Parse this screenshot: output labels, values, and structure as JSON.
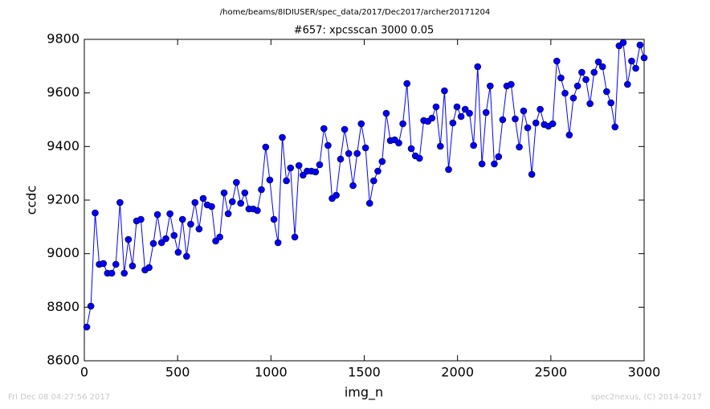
{
  "chart_data": {
    "type": "line",
    "suptitle": "/home/beams/8IDIUSER/spec_data/2017/Dec2017/archer20171204",
    "title": "#657: xpcsscan 3000 0.05",
    "xlabel": "img_n",
    "ylabel": "ccdc",
    "footer_left": "Fri Dec 08 04:27:56 2017",
    "footer_right": "spec2nexus, (C) 2014-2017",
    "xlim": [
      0,
      3000
    ],
    "ylim": [
      8600,
      9800
    ],
    "xticks": [
      0,
      500,
      1000,
      1500,
      2000,
      2500,
      3000
    ],
    "yticks": [
      8600,
      8800,
      9000,
      9200,
      9400,
      9600,
      9800
    ],
    "x": [
      13,
      35,
      58,
      80,
      102,
      124,
      147,
      169,
      191,
      214,
      236,
      258,
      280,
      303,
      325,
      347,
      370,
      392,
      414,
      437,
      459,
      481,
      503,
      526,
      548,
      570,
      593,
      615,
      637,
      659,
      682,
      704,
      726,
      749,
      771,
      793,
      815,
      838,
      860,
      882,
      905,
      927,
      949,
      972,
      994,
      1016,
      1038,
      1061,
      1083,
      1105,
      1128,
      1150,
      1172,
      1194,
      1217,
      1239,
      1261,
      1284,
      1306,
      1328,
      1350,
      1373,
      1395,
      1417,
      1440,
      1462,
      1484,
      1507,
      1529,
      1551,
      1573,
      1596,
      1618,
      1640,
      1663,
      1685,
      1707,
      1729,
      1752,
      1774,
      1796,
      1819,
      1841,
      1863,
      1885,
      1908,
      1930,
      1952,
      1975,
      1997,
      2019,
      2041,
      2064,
      2086,
      2108,
      2131,
      2153,
      2175,
      2197,
      2220,
      2242,
      2264,
      2287,
      2309,
      2331,
      2354,
      2376,
      2398,
      2420,
      2443,
      2465,
      2487,
      2510,
      2532,
      2554,
      2576,
      2599,
      2621,
      2643,
      2666,
      2688,
      2710,
      2732,
      2755,
      2777,
      2799,
      2822,
      2844,
      2866,
      2888,
      2911,
      2933,
      2955,
      2978,
      3000
    ],
    "series": [
      {
        "color": "#0000ff",
        "values": [
          8726,
          8804,
          9152,
          8960,
          8963,
          8927,
          8927,
          8960,
          9191,
          8927,
          9053,
          8954,
          9122,
          9128,
          8939,
          8948,
          9038,
          9146,
          9041,
          9056,
          9149,
          9068,
          9005,
          9128,
          8990,
          9110,
          9191,
          9092,
          9206,
          9182,
          9176,
          9047,
          9062,
          9227,
          9149,
          9194,
          9266,
          9188,
          9227,
          9167,
          9167,
          9161,
          9239,
          9398,
          9275,
          9128,
          9041,
          9434,
          9272,
          9320,
          9062,
          9329,
          9293,
          9308,
          9308,
          9305,
          9332,
          9467,
          9404,
          9206,
          9218,
          9353,
          9464,
          9374,
          9254,
          9374,
          9485,
          9395,
          9188,
          9272,
          9308,
          9344,
          9524,
          9422,
          9425,
          9413,
          9485,
          9635,
          9392,
          9365,
          9356,
          9497,
          9494,
          9506,
          9548,
          9401,
          9608,
          9314,
          9488,
          9548,
          9512,
          9539,
          9524,
          9404,
          9698,
          9335,
          9527,
          9626,
          9335,
          9362,
          9500,
          9626,
          9632,
          9503,
          9398,
          9533,
          9470,
          9296,
          9488,
          9539,
          9482,
          9476,
          9485,
          9719,
          9656,
          9599,
          9443,
          9581,
          9626,
          9677,
          9650,
          9560,
          9677,
          9716,
          9698,
          9605,
          9563,
          9473,
          9776,
          9788,
          9632,
          9719,
          9692,
          9779,
          9731
        ]
      }
    ],
    "grid": false
  }
}
